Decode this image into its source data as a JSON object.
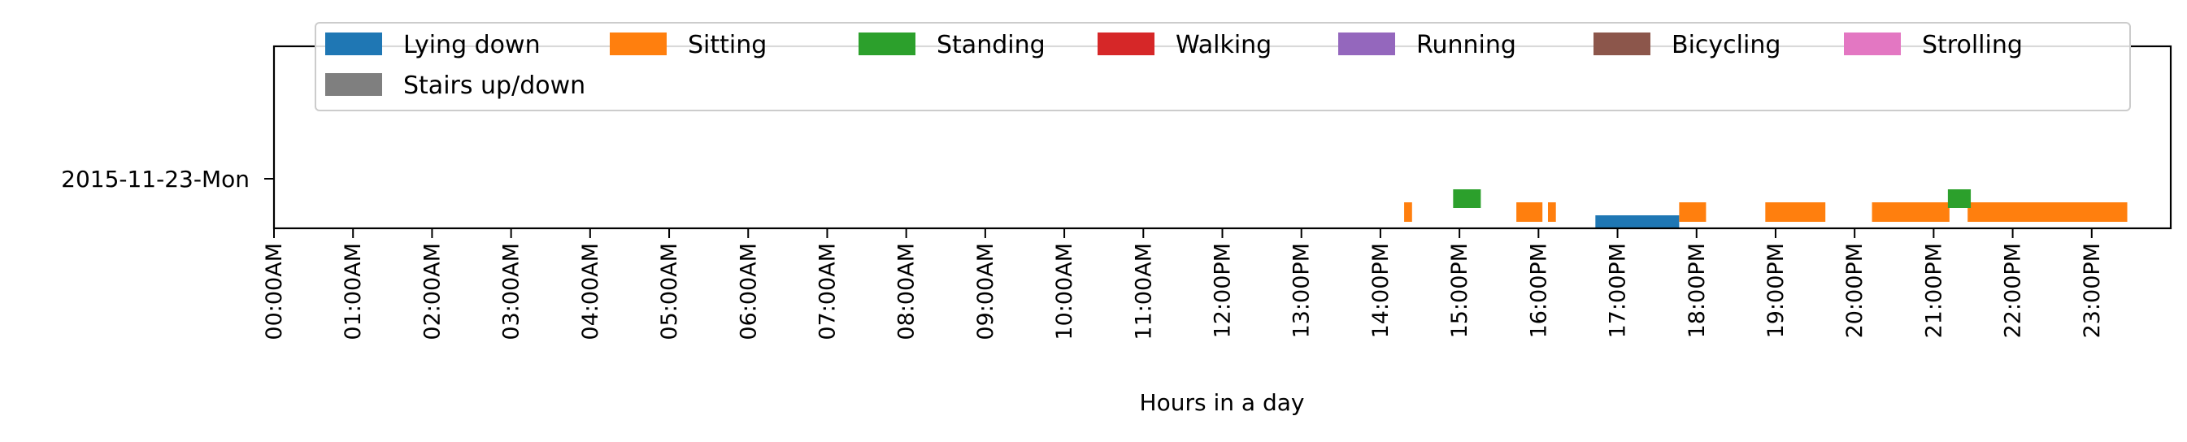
{
  "chart_data": {
    "type": "broken_barh",
    "title": "",
    "xlabel": "Hours in a day",
    "ylabel": "",
    "day_label": "2015-11-23-Mon",
    "x_range_hours": [
      0,
      24
    ],
    "x_ticks": [
      "00:00AM",
      "01:00AM",
      "02:00AM",
      "03:00AM",
      "04:00AM",
      "05:00AM",
      "06:00AM",
      "07:00AM",
      "08:00AM",
      "09:00AM",
      "10:00AM",
      "11:00AM",
      "12:00PM",
      "13:00PM",
      "14:00PM",
      "15:00PM",
      "16:00PM",
      "17:00PM",
      "18:00PM",
      "19:00PM",
      "20:00PM",
      "21:00PM",
      "22:00PM",
      "23:00PM"
    ],
    "legend_position": "top",
    "series": [
      {
        "name": "Lying down",
        "color": "#1f77b4",
        "segments": [
          [
            16.72,
            17.78
          ]
        ]
      },
      {
        "name": "Sitting",
        "color": "#ff7f0e",
        "segments": [
          [
            14.3,
            14.4
          ],
          [
            15.72,
            16.05
          ],
          [
            16.12,
            16.22
          ],
          [
            17.78,
            18.12
          ],
          [
            18.87,
            19.63
          ],
          [
            20.22,
            21.2
          ],
          [
            21.43,
            23.45
          ]
        ]
      },
      {
        "name": "Standing",
        "color": "#2ca02c",
        "segments": [
          [
            14.92,
            15.27
          ],
          [
            21.18,
            21.47
          ]
        ]
      },
      {
        "name": "Walking",
        "color": "#d62728",
        "segments": []
      },
      {
        "name": "Running",
        "color": "#9467bd",
        "segments": []
      },
      {
        "name": "Bicycling",
        "color": "#8c564b",
        "segments": []
      },
      {
        "name": "Strolling",
        "color": "#e377c2",
        "segments": []
      },
      {
        "name": "Stairs up/down",
        "color": "#7f7f7f",
        "segments": []
      }
    ]
  }
}
